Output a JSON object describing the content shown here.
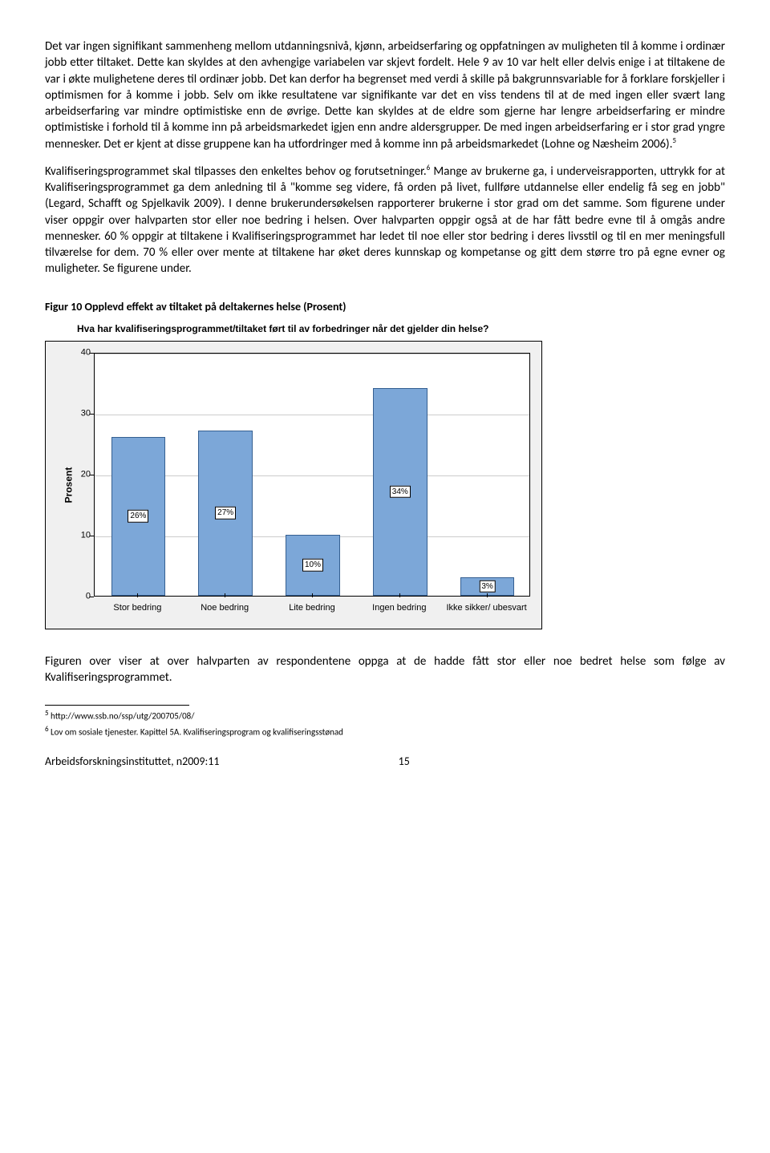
{
  "para1": "Det var ingen signifikant sammenheng mellom utdanningsnivå, kjønn, arbeidserfaring og oppfatningen av muligheten til å komme i ordinær jobb etter tiltaket. Dette kan skyldes at den avhengige variabelen var skjevt fordelt. Hele 9 av 10 var helt eller delvis enige i at tiltakene de var i økte mulighetene deres til ordinær jobb. Det kan derfor ha begrenset med verdi å skille på bakgrunnsvariable for å forklare forskjeller i optimismen for å komme i jobb. Selv om ikke resultatene var signifikante var det en viss tendens til at de med ingen eller svært lang arbeidserfaring var mindre optimistiske enn de øvrige. Dette kan skyldes at de eldre som gjerne har lengre arbeidserfaring er mindre optimistiske i forhold til å komme inn på arbeidsmarkedet igjen enn andre aldersgrupper. De med ingen arbeidserfaring er i stor grad yngre mennesker. Det er kjent at disse gruppene kan ha utfordringer med å komme inn på arbeidsmarkedet (Lohne og Næsheim 2006).",
  "fn5mark": "5",
  "para2a": "Kvalifiseringsprogrammet skal tilpasses den enkeltes behov og forutsetninger.",
  "fn6mark": "6",
  "para2b": " Mange av brukerne ga, i underveisrapporten, uttrykk for at Kvalifiseringsprogrammet ga dem anledning til å \"komme seg videre, få orden på livet, fullføre utdannelse eller endelig få seg en jobb\" (Legard, Schafft og Spjelkavik 2009). I denne brukerundersøkelsen rapporterer brukerne i stor grad om det samme. Som figurene under viser oppgir over halvparten stor eller noe bedring i helsen. Over halvparten oppgir også at de har fått bedre evne til å omgås andre mennesker. 60 % oppgir at tiltakene i Kvalifiseringsprogrammet har ledet til noe eller stor bedring i deres livsstil og til en mer meningsfull tilværelse for dem. 70 % eller over mente at tiltakene har øket deres kunnskap og kompetanse og gitt dem større tro på egne evner og muligheter. Se figurene under.",
  "figcap": "Figur 10 Opplevd effekt av tiltaket på deltakernes helse (Prosent)",
  "chart": {
    "title": "Hva har kvalifiseringsprogrammet/tiltaket ført til av forbedringer når det gjelder din helse?",
    "ylabel": "Prosent",
    "ymax": 40,
    "yticks": [
      0,
      10,
      20,
      30,
      40
    ],
    "bar_color": "#7ca7d8",
    "bar_border": "#355f91",
    "categories": [
      "Stor bedring",
      "Noe bedring",
      "Lite bedring",
      "Ingen bedring",
      "Ikke sikker/ ubesvart"
    ],
    "values": [
      26,
      27,
      10,
      34,
      3
    ],
    "value_labels": [
      "26%",
      "27%",
      "10%",
      "34%",
      "3%"
    ]
  },
  "para3": "Figuren over viser at over halvparten av respondentene oppga at de hadde fått stor eller noe bedret helse som følge av Kvalifiseringsprogrammet.",
  "footnote5": " http://www.ssb.no/ssp/utg/200705/08/",
  "footnote6": " Lov om sosiale tjenester. Kapittel 5A. Kvalifiseringsprogram og kvalifiseringsstønad",
  "footer_left": "Arbeidsforskningsinstituttet, n2009:11",
  "footer_page": "15"
}
